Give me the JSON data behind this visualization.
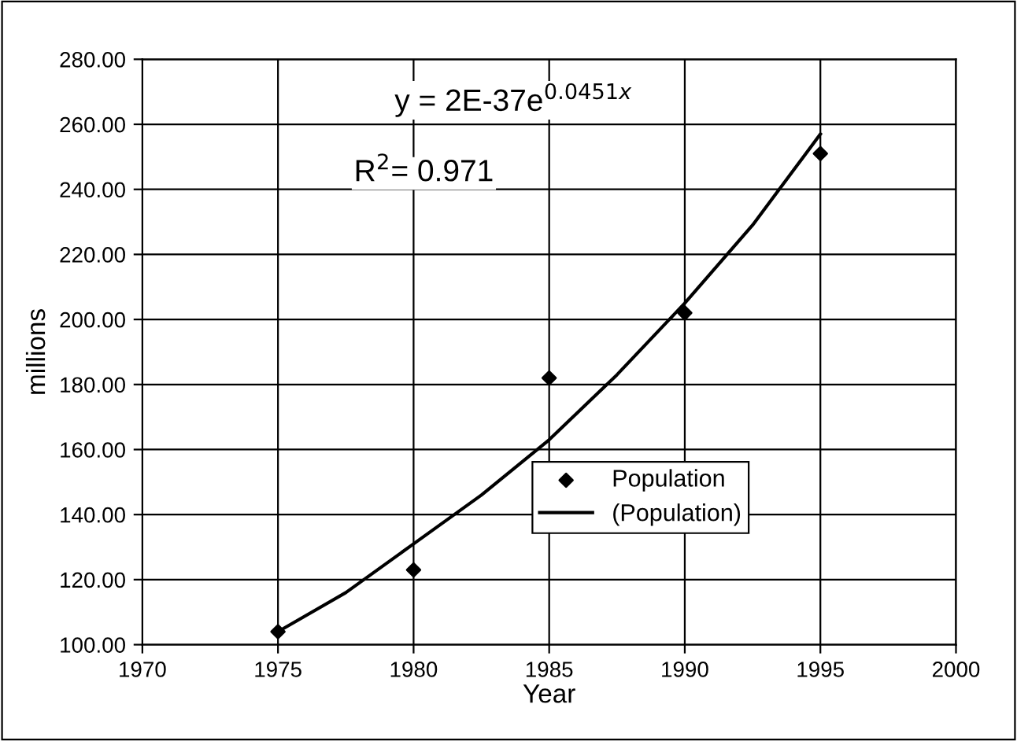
{
  "chart_data": {
    "type": "scatter",
    "xlabel": "Year",
    "ylabel": "millions",
    "annotations": [
      "y = 2E-37e$^{0.0451x}$",
      "R$^{2}$= 0.971"
    ],
    "series": [
      {
        "name": "Population",
        "color": "#000000",
        "marker": "diamond",
        "x": [
          1975,
          1980,
          1985,
          1990,
          1995
        ],
        "values": [
          104,
          123,
          182,
          202,
          251
        ]
      },
      {
        "name": "(Population)",
        "type": "line",
        "color": "#000000",
        "marker": "none",
        "line_style": "solid",
        "x": [
          1975,
          1977.5,
          1980,
          1982.5,
          1985,
          1987.5,
          1990,
          1992.5,
          1995
        ],
        "values": [
          104,
          116,
          131,
          146,
          163,
          183,
          205,
          229,
          257
        ]
      }
    ],
    "xlim": [
      1970,
      2000
    ],
    "xticks": [
      1970,
      1975,
      1980,
      1985,
      1990,
      1995,
      2000
    ],
    "ylim": [
      100,
      280
    ],
    "yticks": [
      {
        "value": 100,
        "label": "100.00"
      },
      {
        "value": 120,
        "label": "120.00"
      },
      {
        "value": 140,
        "label": "140.00"
      },
      {
        "value": 160,
        "label": "160.00"
      },
      {
        "value": 180,
        "label": "180.00"
      },
      {
        "value": 200,
        "label": "200.00"
      },
      {
        "value": 220,
        "label": "220.00"
      },
      {
        "value": 240,
        "label": "240.00"
      },
      {
        "value": 260,
        "label": "260.00"
      },
      {
        "value": 280,
        "label": "280.00"
      }
    ],
    "grid": true,
    "legend": "bottom right"
  }
}
